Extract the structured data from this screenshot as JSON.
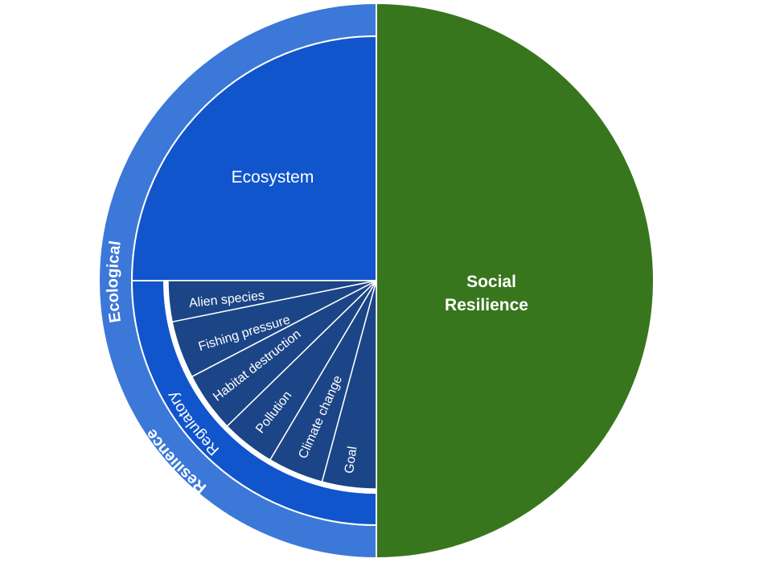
{
  "diagram": {
    "social_resilience": {
      "line1": "Social",
      "line2": "Resilience",
      "color": "#38761d"
    },
    "ecological_ring": {
      "word1": "Ecological",
      "word2": "Resilience",
      "color": "#3c78d8"
    },
    "ecosystem": {
      "label": "Ecosystem",
      "color": "#1155cc"
    },
    "regulatory": {
      "label": "Regulatory",
      "color": "#1155cc"
    },
    "regulatory_items": {
      "color": "#1c4587",
      "alien_species": "Alien species",
      "fishing_pressure": "Fishing pressure",
      "habitat_destruction": "Habitat destruction",
      "pollution": "Pollution",
      "climate_change": "Climate change",
      "goal": "Goal"
    }
  }
}
